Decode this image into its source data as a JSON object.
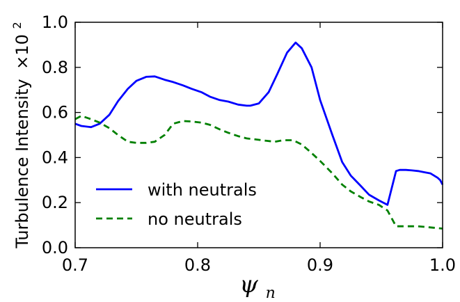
{
  "chart_data": {
    "type": "line",
    "xlabel": "ψ",
    "xlabel_sub": "n",
    "ylabel": "Turbulence Intensity",
    "ylabel_multiplier": "×10",
    "ylabel_exponent": "2",
    "xlim": [
      0.7,
      1.0
    ],
    "ylim": [
      0.0,
      1.0
    ],
    "xticks": [
      "0.7",
      "0.8",
      "0.9",
      "1.0"
    ],
    "yticks": [
      "0.0",
      "0.2",
      "0.4",
      "0.6",
      "0.8",
      "1.0"
    ],
    "legend_position": "lower-left",
    "series": [
      {
        "name": "with neutrals",
        "color": "#0000ff",
        "style": "solid",
        "x": [
          0.7,
          0.705,
          0.713,
          0.72,
          0.728,
          0.735,
          0.743,
          0.75,
          0.758,
          0.765,
          0.773,
          0.78,
          0.788,
          0.795,
          0.803,
          0.81,
          0.818,
          0.825,
          0.833,
          0.84,
          0.843,
          0.85,
          0.858,
          0.865,
          0.873,
          0.88,
          0.885,
          0.893,
          0.9,
          0.91,
          0.918,
          0.925,
          0.933,
          0.94,
          0.948,
          0.955,
          0.962,
          0.965,
          0.97,
          0.975,
          0.98,
          0.985,
          0.99,
          0.993,
          0.996,
          0.998,
          1.0
        ],
        "y": [
          0.55,
          0.54,
          0.535,
          0.55,
          0.59,
          0.65,
          0.705,
          0.74,
          0.758,
          0.76,
          0.745,
          0.735,
          0.72,
          0.705,
          0.69,
          0.67,
          0.655,
          0.648,
          0.635,
          0.63,
          0.63,
          0.64,
          0.69,
          0.77,
          0.865,
          0.91,
          0.885,
          0.8,
          0.655,
          0.5,
          0.38,
          0.32,
          0.275,
          0.235,
          0.21,
          0.19,
          0.34,
          0.345,
          0.345,
          0.343,
          0.34,
          0.335,
          0.33,
          0.32,
          0.31,
          0.3,
          0.28
        ]
      },
      {
        "name": "no neutrals",
        "color": "#008000",
        "style": "dashed",
        "x": [
          0.7,
          0.705,
          0.713,
          0.72,
          0.728,
          0.735,
          0.743,
          0.75,
          0.758,
          0.765,
          0.773,
          0.78,
          0.788,
          0.795,
          0.803,
          0.81,
          0.818,
          0.825,
          0.833,
          0.84,
          0.848,
          0.855,
          0.863,
          0.87,
          0.878,
          0.885,
          0.893,
          0.9,
          0.91,
          0.918,
          0.925,
          0.933,
          0.94,
          0.948,
          0.955,
          0.962,
          0.97,
          0.98,
          0.99,
          1.0
        ],
        "y": [
          0.57,
          0.585,
          0.57,
          0.555,
          0.53,
          0.5,
          0.47,
          0.465,
          0.465,
          0.47,
          0.5,
          0.55,
          0.562,
          0.56,
          0.555,
          0.545,
          0.525,
          0.51,
          0.495,
          0.485,
          0.48,
          0.475,
          0.47,
          0.477,
          0.477,
          0.458,
          0.42,
          0.385,
          0.33,
          0.28,
          0.25,
          0.225,
          0.205,
          0.19,
          0.165,
          0.095,
          0.095,
          0.095,
          0.09,
          0.085
        ]
      }
    ]
  }
}
